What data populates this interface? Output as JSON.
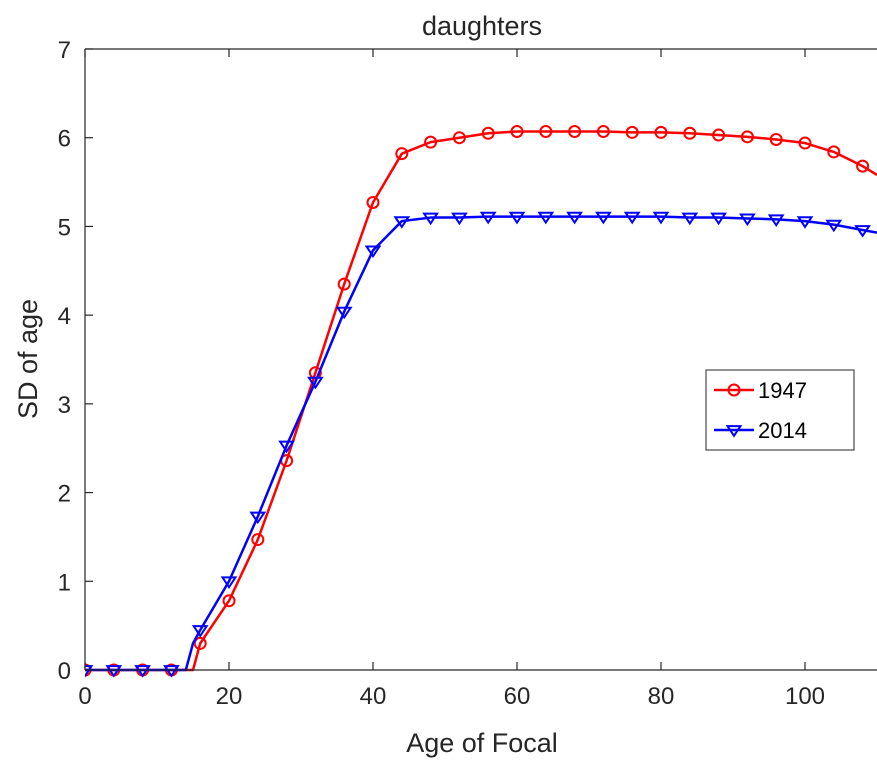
{
  "chart_data": {
    "type": "line",
    "title": "daughters",
    "xlabel": "Age of Focal",
    "ylabel": "SD of age",
    "xlim": [
      0,
      110
    ],
    "ylim": [
      0,
      7
    ],
    "xticks": [
      0,
      20,
      40,
      60,
      80,
      100
    ],
    "yticks": [
      0,
      1,
      2,
      3,
      4,
      5,
      6,
      7
    ],
    "grid": false,
    "legend_position": "right",
    "series": [
      {
        "name": "1947",
        "color": "#ff0000",
        "marker": "circle",
        "x": [
          0,
          4,
          8,
          12,
          14,
          15,
          16,
          20,
          24,
          28,
          32,
          36,
          40,
          44,
          48,
          52,
          56,
          60,
          64,
          68,
          72,
          76,
          80,
          84,
          88,
          92,
          96,
          100,
          104,
          108,
          110
        ],
        "y": [
          0,
          0,
          0,
          0,
          0,
          0,
          0.3,
          0.78,
          1.47,
          2.36,
          3.35,
          4.35,
          5.27,
          5.82,
          5.95,
          6.0,
          6.05,
          6.07,
          6.07,
          6.07,
          6.07,
          6.06,
          6.06,
          6.05,
          6.03,
          6.01,
          5.98,
          5.94,
          5.84,
          5.68,
          5.58
        ]
      },
      {
        "name": "2014",
        "color": "#0000ff",
        "marker": "triangle-down",
        "x": [
          0,
          4,
          8,
          12,
          14,
          15,
          16,
          20,
          24,
          28,
          32,
          36,
          40,
          44,
          48,
          52,
          56,
          60,
          64,
          68,
          72,
          76,
          80,
          84,
          88,
          92,
          96,
          100,
          104,
          108,
          110
        ],
        "y": [
          0,
          0,
          0,
          0,
          0,
          0.3,
          0.45,
          1.0,
          1.73,
          2.53,
          3.25,
          4.04,
          4.73,
          5.06,
          5.1,
          5.1,
          5.11,
          5.11,
          5.11,
          5.11,
          5.11,
          5.11,
          5.11,
          5.1,
          5.1,
          5.09,
          5.08,
          5.06,
          5.02,
          4.96,
          4.93
        ]
      }
    ]
  }
}
